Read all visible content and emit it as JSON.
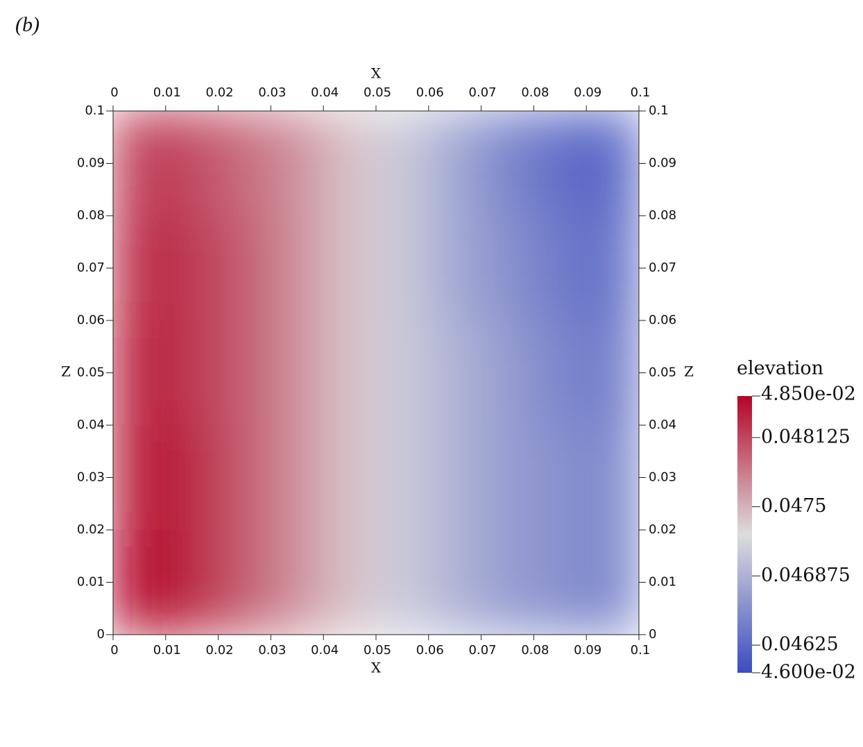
{
  "chart_data": {
    "type": "heatmap",
    "panel_label": "(b)",
    "xlabel": "X",
    "ylabel": "Z",
    "x": [
      0.005,
      0.015,
      0.025,
      0.035,
      0.045,
      0.055,
      0.065,
      0.075,
      0.085,
      0.095
    ],
    "y": [
      0.09,
      0.07,
      0.05,
      0.03,
      0.01
    ],
    "values": [
      [
        0.0482,
        0.0481,
        0.0479,
        0.0477,
        0.0474,
        0.0471,
        0.0468,
        0.0465,
        0.0463,
        0.0462
      ],
      [
        0.0483,
        0.0482,
        0.048,
        0.0477,
        0.0474,
        0.0471,
        0.0468,
        0.0466,
        0.0464,
        0.0463
      ],
      [
        0.0484,
        0.0482,
        0.048,
        0.0477,
        0.0474,
        0.0471,
        0.0469,
        0.0467,
        0.0465,
        0.0464
      ],
      [
        0.0484,
        0.0483,
        0.048,
        0.0477,
        0.0474,
        0.0471,
        0.0469,
        0.0467,
        0.0466,
        0.0465
      ],
      [
        0.0485,
        0.0483,
        0.048,
        0.0477,
        0.0474,
        0.0471,
        0.0469,
        0.0467,
        0.0466,
        0.0465
      ]
    ],
    "xlim": [
      0,
      0.1
    ],
    "xticks": [
      0,
      0.01,
      0.02,
      0.03,
      0.04,
      0.05,
      0.06,
      0.07,
      0.08,
      0.09,
      0.1
    ],
    "ylim": [
      0,
      0.1
    ],
    "yticks": [
      0,
      0.01,
      0.02,
      0.03,
      0.04,
      0.05,
      0.06,
      0.07,
      0.08,
      0.09,
      0.1
    ],
    "colorbar": {
      "title": "elevation",
      "lim": [
        0.046,
        0.0485
      ],
      "ticks": [
        {
          "value": 0.0485,
          "label": "4.850e-02"
        },
        0.048125,
        0.0475,
        0.046875,
        0.04625,
        {
          "value": 0.046,
          "label": "4.600e-02"
        }
      ],
      "colors": [
        "#3b4cc0",
        "#dddddd",
        "#b40426"
      ]
    }
  }
}
